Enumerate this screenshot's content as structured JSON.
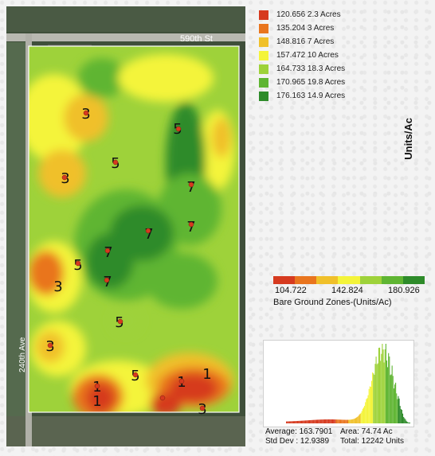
{
  "map": {
    "road_north_label": "590th St",
    "road_west_label": "240th Ave",
    "zone_labels": [
      "3",
      "5",
      "3",
      "5",
      "7",
      "7",
      "7",
      "7",
      "5",
      "3",
      "7",
      "5",
      "3",
      "5",
      "1",
      "1",
      "1",
      "1",
      "3"
    ]
  },
  "legend": {
    "entries": [
      {
        "label": "120.656 2.3 Acres",
        "color": "#d63a1f"
      },
      {
        "label": "135.204 3 Acres",
        "color": "#e9751e"
      },
      {
        "label": "148.816 7 Acres",
        "color": "#f0c02a"
      },
      {
        "label": "157.472 10 Acres",
        "color": "#f4f43a"
      },
      {
        "label": "164.733 18.3 Acres",
        "color": "#9ed23a"
      },
      {
        "label": "170.965 19.8 Acres",
        "color": "#5fb532"
      },
      {
        "label": "176.163 14.9 Acres",
        "color": "#2e8b2a"
      }
    ],
    "units_label": "Units/Ac"
  },
  "scale": {
    "colors": [
      "#d63a1f",
      "#e9751e",
      "#f0c02a",
      "#f4f43a",
      "#9ed23a",
      "#5fb532",
      "#2e8b2a"
    ],
    "min_label": "104.722",
    "mid_label": "142.824",
    "max_label": "180.926",
    "title": "Bare Ground Zones-(Units/Ac)"
  },
  "histogram": {
    "average": "Average: 163.7901",
    "area": "Area: 74.74 Ac",
    "std_dev": "Std Dev : 12.9389",
    "total": "Total:  12242 Units"
  }
}
